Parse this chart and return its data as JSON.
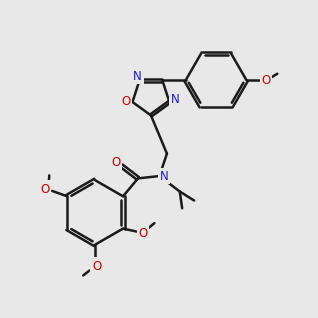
{
  "bg": "#e8e8e8",
  "bc": "#1a1a1a",
  "oc": "#cc0000",
  "nc": "#1a1acc",
  "lw": 1.8,
  "fs": 8.5,
  "sfs": 7.5
}
